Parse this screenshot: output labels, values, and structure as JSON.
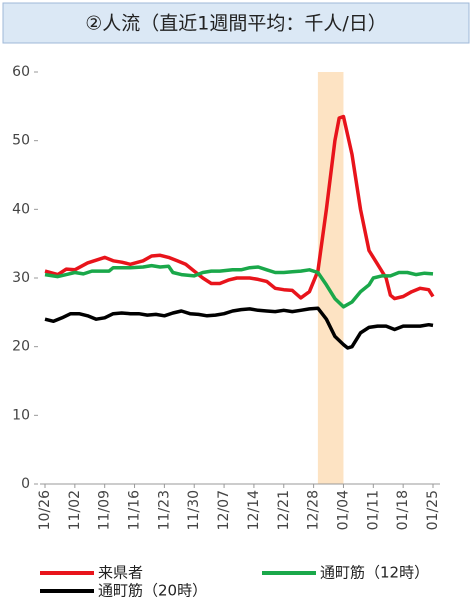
{
  "chart_data": {
    "type": "line",
    "title": "②人流（直近1週間平均：千人/日）",
    "xlim": [
      0,
      91
    ],
    "xticks": [
      {
        "value": 0,
        "label": "10/26"
      },
      {
        "value": 7,
        "label": "11/02"
      },
      {
        "value": 14,
        "label": "11/09"
      },
      {
        "value": 21,
        "label": "11/16"
      },
      {
        "value": 28,
        "label": "11/23"
      },
      {
        "value": 35,
        "label": "11/30"
      },
      {
        "value": 42,
        "label": "12/07"
      },
      {
        "value": 49,
        "label": "12/14"
      },
      {
        "value": 56,
        "label": "12/21"
      },
      {
        "value": 63,
        "label": "12/28"
      },
      {
        "value": 70,
        "label": "01/04"
      },
      {
        "value": 77,
        "label": "01/11"
      },
      {
        "value": 84,
        "label": "01/18"
      },
      {
        "value": 91,
        "label": "01/25"
      }
    ],
    "ylim": [
      0,
      60
    ],
    "yticks": [
      0,
      10,
      20,
      30,
      40,
      50,
      60
    ],
    "grid": false,
    "highlight": {
      "x": [
        64,
        70
      ],
      "color": "#fde3c3"
    },
    "series": [
      {
        "name": "来県者",
        "color": "#e8141b",
        "x": [
          0,
          3,
          5,
          7,
          10,
          13,
          14,
          16,
          18,
          20,
          23,
          25,
          27,
          29,
          31,
          33,
          35,
          37,
          39,
          41,
          43,
          45,
          48,
          50,
          52,
          54,
          56,
          58,
          60,
          62,
          64,
          66,
          68,
          69,
          70,
          72,
          74,
          76,
          78,
          80,
          81,
          82,
          84,
          86,
          88,
          90,
          91
        ],
        "values": [
          31,
          30.5,
          31.3,
          31.2,
          32.2,
          32.8,
          33,
          32.5,
          32.3,
          32,
          32.5,
          33.2,
          33.3,
          33,
          32.5,
          32,
          31,
          30,
          29.2,
          29.2,
          29.7,
          30,
          30,
          29.8,
          29.5,
          28.5,
          28.3,
          28.2,
          27.1,
          28,
          31,
          40,
          50,
          53.3,
          53.5,
          48,
          40,
          34,
          32,
          30,
          27.5,
          27,
          27.3,
          28,
          28.5,
          28.3,
          27.3
        ]
      },
      {
        "name": "通町筋（12時）",
        "color": "#1aa84a",
        "x": [
          0,
          3,
          5,
          7,
          9,
          11,
          13,
          15,
          16,
          20,
          23,
          25,
          27,
          29,
          30,
          32,
          35,
          37,
          39,
          41,
          44,
          46,
          48,
          50,
          52,
          54,
          56,
          58,
          60,
          62,
          64,
          66,
          68,
          70,
          72,
          74,
          76,
          77,
          79,
          81,
          83,
          85,
          87,
          89,
          91
        ],
        "values": [
          30.5,
          30.2,
          30.5,
          30.8,
          30.6,
          31,
          31,
          31,
          31.5,
          31.5,
          31.6,
          31.8,
          31.6,
          31.7,
          30.8,
          30.5,
          30.3,
          30.8,
          31,
          31,
          31.2,
          31.2,
          31.5,
          31.6,
          31.2,
          30.8,
          30.8,
          30.9,
          31,
          31.2,
          30.8,
          29,
          27,
          25.8,
          26.5,
          28,
          29,
          30,
          30.3,
          30.3,
          30.8,
          30.8,
          30.5,
          30.7,
          30.6
        ]
      },
      {
        "name": "通町筋（20時）",
        "color": "#000000",
        "x": [
          0,
          2,
          4,
          6,
          8,
          10,
          12,
          14,
          16,
          18,
          20,
          22,
          24,
          26,
          28,
          30,
          32,
          34,
          36,
          38,
          40,
          42,
          44,
          46,
          48,
          50,
          52,
          54,
          56,
          58,
          60,
          62,
          64,
          66,
          68,
          70,
          71,
          72,
          74,
          76,
          78,
          80,
          82,
          84,
          86,
          88,
          90,
          91
        ],
        "values": [
          24,
          23.7,
          24.2,
          24.8,
          24.8,
          24.5,
          24,
          24.2,
          24.8,
          24.9,
          24.8,
          24.8,
          24.6,
          24.7,
          24.5,
          24.9,
          25.2,
          24.8,
          24.7,
          24.5,
          24.6,
          24.8,
          25.2,
          25.4,
          25.5,
          25.3,
          25.2,
          25.1,
          25.3,
          25.1,
          25.3,
          25.5,
          25.6,
          24,
          21.5,
          20.3,
          19.8,
          20,
          22,
          22.8,
          23,
          23,
          22.5,
          23,
          23,
          23,
          23.2,
          23.1
        ]
      }
    ]
  }
}
